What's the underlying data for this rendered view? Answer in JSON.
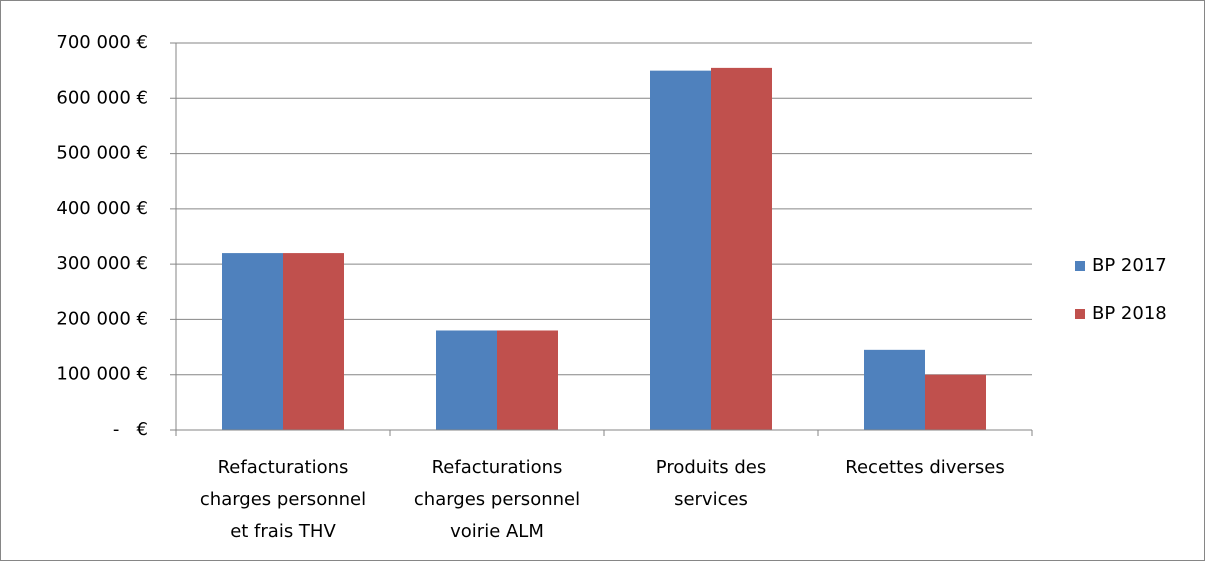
{
  "chart_data": {
    "type": "bar",
    "categories": [
      [
        "Refacturations",
        "charges personnel",
        "et frais THV"
      ],
      [
        "Refacturations",
        "charges personnel",
        "voirie ALM"
      ],
      [
        "Produits des",
        "services"
      ],
      [
        "Recettes diverses"
      ]
    ],
    "series": [
      {
        "name": "BP 2017",
        "color": "#4f81bd",
        "values": [
          320000,
          180000,
          650000,
          145000
        ]
      },
      {
        "name": "BP 2018",
        "color": "#c0504d",
        "values": [
          320000,
          180000,
          655000,
          100000
        ]
      }
    ],
    "ylim": [
      0,
      700000
    ],
    "yticks": [
      {
        "value": 0,
        "label": "-   €"
      },
      {
        "value": 100000,
        "label": "100 000 €"
      },
      {
        "value": 200000,
        "label": "200 000 €"
      },
      {
        "value": 300000,
        "label": "300 000 €"
      },
      {
        "value": 400000,
        "label": "400 000 €"
      },
      {
        "value": 500000,
        "label": "500 000 €"
      },
      {
        "value": 600000,
        "label": "600 000 €"
      },
      {
        "value": 700000,
        "label": "700 000 €"
      }
    ],
    "grid": true,
    "legend": "right"
  }
}
